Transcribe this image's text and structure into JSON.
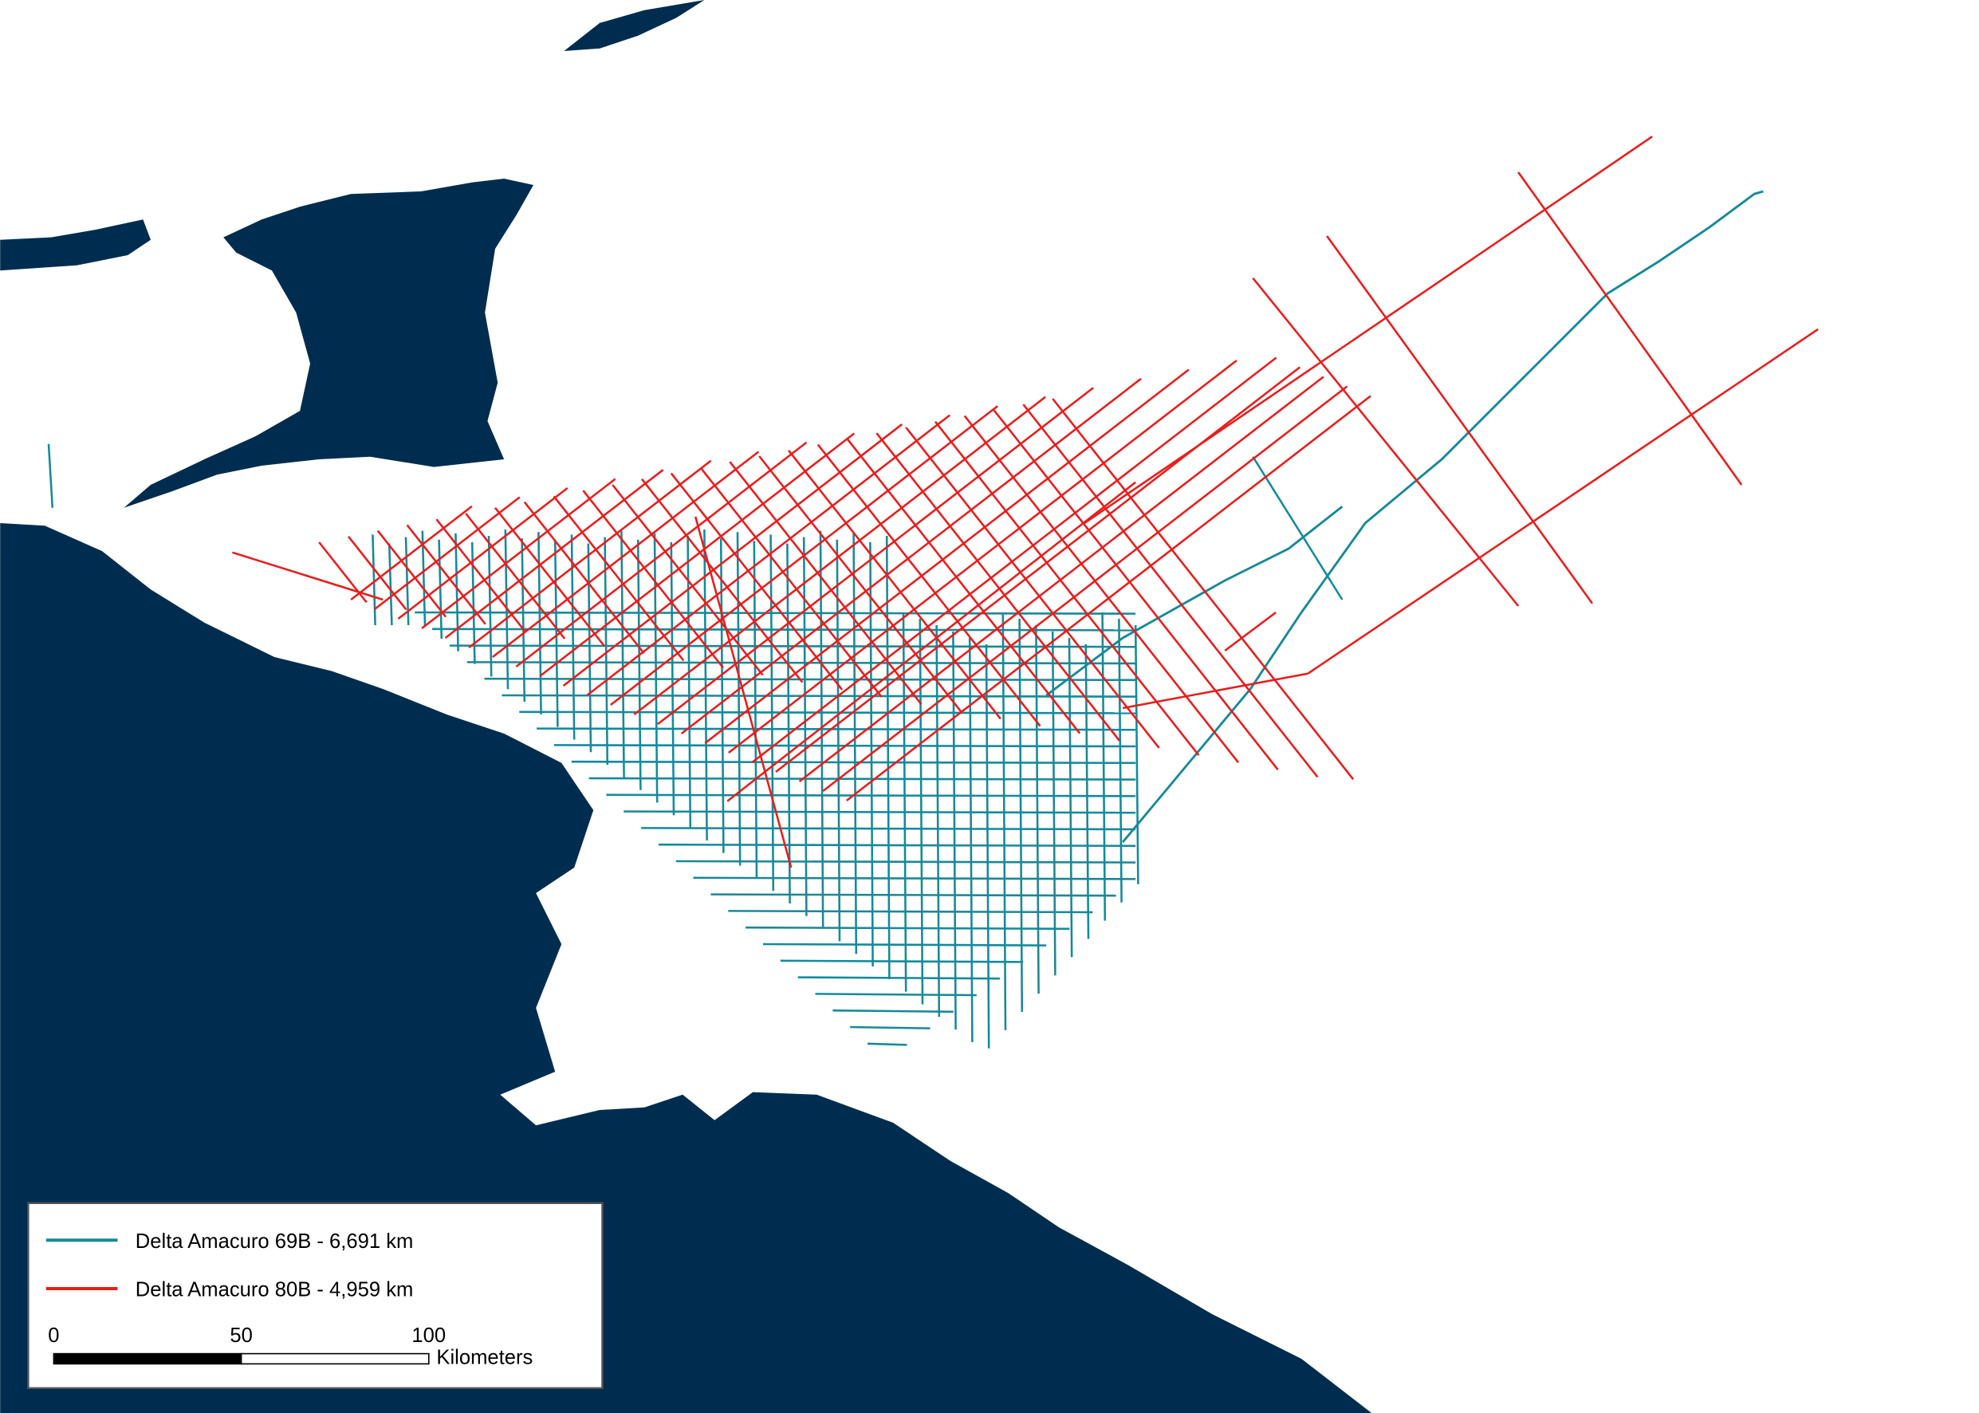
{
  "legend": {
    "items": [
      {
        "label": "Delta Amacuro 69B - 6,691 km",
        "color": "#16899a"
      },
      {
        "label": "Delta Amacuro 80B - 4,959 km",
        "color": "#ea1c1c"
      }
    ]
  },
  "scale_bar": {
    "ticks": [
      0,
      50,
      100
    ],
    "unit": "Kilometers"
  }
}
